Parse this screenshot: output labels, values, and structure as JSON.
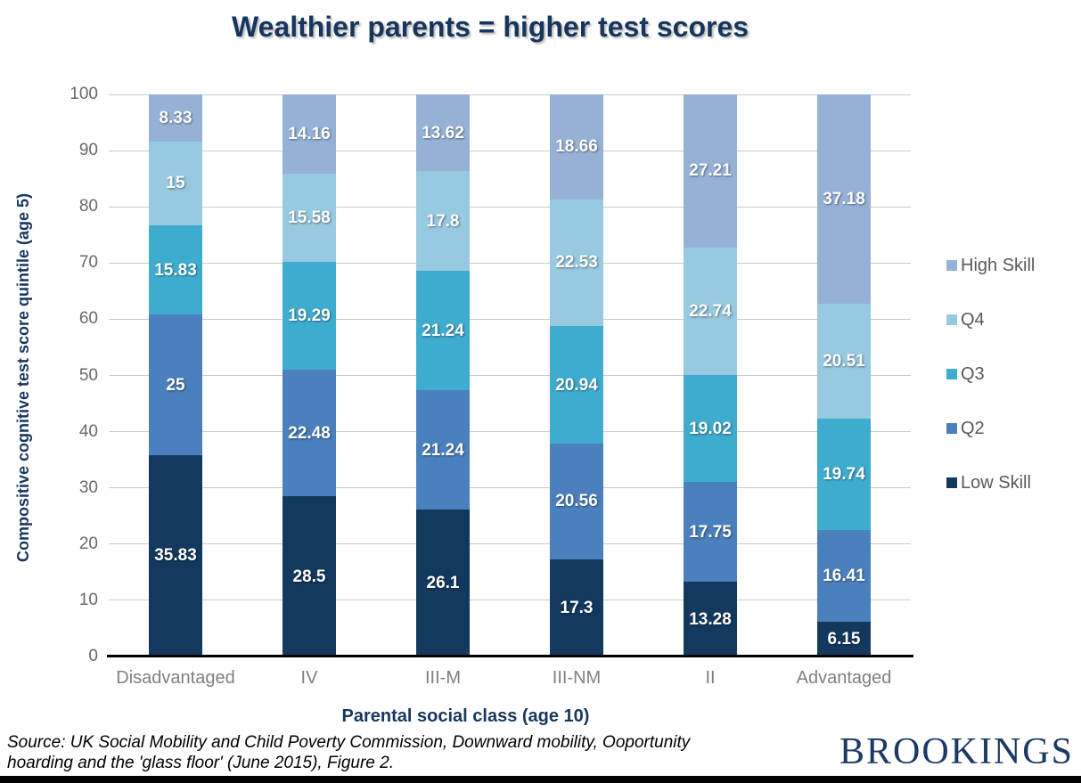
{
  "page": {
    "source_line1": "Source: UK Social Mobility and Child Poverty Commission, Downward mobility, Ooportunity",
    "source_line2": "hoarding and the 'glass floor' (June 2015), Figure 2.",
    "brand": "BROOKINGS"
  },
  "colors": {
    "title_navy": "#17365d",
    "axis_label_gray": "#696969",
    "category_gray": "#7f7f7f",
    "legend_text_gray": "#595959",
    "gridline_gray": "#c9c9c9",
    "brand_navy": "#1b3a63"
  },
  "chart_data": {
    "type": "bar",
    "stacked": true,
    "title": "Wealthier parents = higher test scores",
    "xlabel": "Parental social class (age 10)",
    "ylabel": "Compositive cognitive test score quintile (age 5)",
    "ylim": [
      0,
      100
    ],
    "ytick_step": 10,
    "grid": true,
    "legend_position": "right",
    "data_labels": true,
    "categories": [
      "Disadvantaged",
      "IV",
      "III-M",
      "III-NM",
      "II",
      "Advantaged"
    ],
    "series": [
      {
        "name": "Low Skill",
        "color": "#14395f",
        "values": [
          35.83,
          28.5,
          26.1,
          17.3,
          13.28,
          6.15
        ]
      },
      {
        "name": "Q2",
        "color": "#4a80bd",
        "values": [
          25,
          22.48,
          21.24,
          20.56,
          17.75,
          16.41
        ]
      },
      {
        "name": "Q3",
        "color": "#3eacce",
        "values": [
          15.83,
          19.29,
          21.24,
          20.94,
          19.02,
          19.74
        ]
      },
      {
        "name": "Q4",
        "color": "#97c9e0",
        "values": [
          15,
          15.58,
          17.8,
          22.53,
          22.74,
          20.51
        ]
      },
      {
        "name": "High Skill",
        "color": "#95b2d6",
        "values": [
          8.33,
          14.16,
          13.62,
          18.66,
          27.21,
          37.18
        ]
      }
    ],
    "legend_order": [
      "High Skill",
      "Q4",
      "Q3",
      "Q2",
      "Low Skill"
    ]
  }
}
